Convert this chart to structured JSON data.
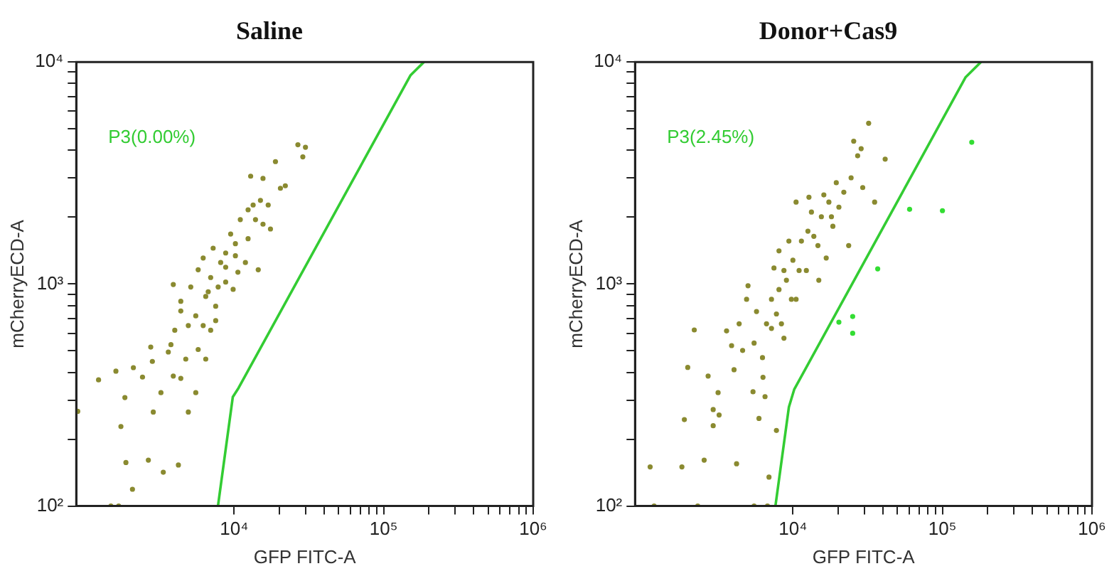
{
  "chart_data": [
    {
      "type": "scatter",
      "title": "Saline",
      "xlabel": "GFP FITC-A",
      "ylabel": "mCherryECD-A",
      "log": "xy",
      "grid": false,
      "legend": false,
      "marker": "circle",
      "xlim": [
        880,
        1000000
      ],
      "ylim": [
        100,
        10000
      ],
      "xticks": [
        {
          "value": 10000,
          "label": "10⁴"
        },
        {
          "value": 20000,
          "label": null
        },
        {
          "value": 30000,
          "label": null
        },
        {
          "value": 40000,
          "label": null
        },
        {
          "value": 50000,
          "label": null
        },
        {
          "value": 60000,
          "label": null
        },
        {
          "value": 70000,
          "label": null
        },
        {
          "value": 80000,
          "label": null
        },
        {
          "value": 90000,
          "label": null
        },
        {
          "value": 100000,
          "label": "10⁵"
        },
        {
          "value": 200000,
          "label": null
        },
        {
          "value": 300000,
          "label": null
        },
        {
          "value": 400000,
          "label": null
        },
        {
          "value": 500000,
          "label": null
        },
        {
          "value": 600000,
          "label": null
        },
        {
          "value": 700000,
          "label": null
        },
        {
          "value": 800000,
          "label": null
        },
        {
          "value": 900000,
          "label": null
        },
        {
          "value": 1000000,
          "label": "10⁶"
        }
      ],
      "yticks": [
        {
          "value": 100,
          "label": "10²"
        },
        {
          "value": 200,
          "label": null
        },
        {
          "value": 300,
          "label": null
        },
        {
          "value": 400,
          "label": null
        },
        {
          "value": 500,
          "label": null
        },
        {
          "value": 600,
          "label": null
        },
        {
          "value": 700,
          "label": null
        },
        {
          "value": 800,
          "label": null
        },
        {
          "value": 900,
          "label": null
        },
        {
          "value": 1000,
          "label": "10³"
        },
        {
          "value": 2000,
          "label": null
        },
        {
          "value": 3000,
          "label": null
        },
        {
          "value": 4000,
          "label": null
        },
        {
          "value": 5000,
          "label": null
        },
        {
          "value": 6000,
          "label": null
        },
        {
          "value": 7000,
          "label": null
        },
        {
          "value": 8000,
          "label": null
        },
        {
          "value": 9000,
          "label": null
        },
        {
          "value": 10000,
          "label": "10⁴"
        }
      ],
      "annotations": [
        "P3(0.00%)"
      ],
      "series": [
        {
          "color": "#8a8a30",
          "x": [
            1240,
            1620,
            1860,
            1750,
            2120,
            2440,
            2770,
            2840,
            3240,
            2880,
            2670,
            3360,
            4240,
            1890,
            2090,
            1500,
            1690,
            900,
            3920,
            3630,
            4010,
            4400,
            4750,
            4940,
            5540,
            5750,
            6210,
            6460,
            6970,
            7530,
            6970,
            8130,
            8780,
            9480,
            10200,
            10600,
            11900,
            12400,
            13900,
            15000,
            15600,
            13400,
            3920,
            4400,
            5130,
            5750,
            6210,
            7240,
            6710,
            8780,
            9850,
            7820,
            5540,
            4940,
            3780,
            4400,
            6460,
            7530,
            12900,
            15600,
            18900,
            20400,
            22000,
            26700,
            30000,
            28800,
            14500,
            11000,
            12400,
            17500,
            16900,
            10200,
            8780
          ],
          "values": [
            370,
            405,
            308,
            228,
            420,
            381,
            520,
            448,
            324,
            265,
            161,
            142,
            153,
            157,
            119,
            100,
            100,
            267,
            385,
            494,
            619,
            756,
            459,
            265,
            324,
            507,
            650,
            879,
            619,
            794,
            1070,
            1250,
            1380,
            1680,
            1520,
            1130,
            1250,
            1600,
            1950,
            2380,
            1860,
            2270,
            995,
            836,
            970,
            1160,
            1310,
            1450,
            923,
            1020,
            946,
            970,
            719,
            650,
            533,
            376,
            459,
            684,
            3060,
            2990,
            3560,
            2700,
            2770,
            4240,
            4130,
            3740,
            1160,
            1950,
            2160,
            1770,
            2270,
            1340,
            1190
          ]
        },
        {
          "type": "line",
          "marker": "none",
          "color": "#33cc33",
          "x": [
            7800,
            9800,
            10700,
            151000,
            186000
          ],
          "values": [
            100,
            310,
            340,
            8700,
            10000
          ]
        }
      ]
    },
    {
      "type": "scatter",
      "title": "Donor+Cas9",
      "xlabel": "GFP FITC-A",
      "ylabel": "mCherryECD-A",
      "log": "xy",
      "grid": false,
      "legend": false,
      "marker": "circle",
      "xlim": [
        880,
        1000000
      ],
      "ylim": [
        100,
        10000
      ],
      "xticks": [
        {
          "value": 10000,
          "label": "10⁴"
        },
        {
          "value": 20000,
          "label": null
        },
        {
          "value": 30000,
          "label": null
        },
        {
          "value": 40000,
          "label": null
        },
        {
          "value": 50000,
          "label": null
        },
        {
          "value": 60000,
          "label": null
        },
        {
          "value": 70000,
          "label": null
        },
        {
          "value": 80000,
          "label": null
        },
        {
          "value": 90000,
          "label": null
        },
        {
          "value": 100000,
          "label": "10⁵"
        },
        {
          "value": 200000,
          "label": null
        },
        {
          "value": 300000,
          "label": null
        },
        {
          "value": 400000,
          "label": null
        },
        {
          "value": 500000,
          "label": null
        },
        {
          "value": 600000,
          "label": null
        },
        {
          "value": 700000,
          "label": null
        },
        {
          "value": 800000,
          "label": null
        },
        {
          "value": 900000,
          "label": null
        },
        {
          "value": 1000000,
          "label": "10⁶"
        }
      ],
      "yticks": [
        {
          "value": 100,
          "label": "10²"
        },
        {
          "value": 200,
          "label": null
        },
        {
          "value": 300,
          "label": null
        },
        {
          "value": 400,
          "label": null
        },
        {
          "value": 500,
          "label": null
        },
        {
          "value": 600,
          "label": null
        },
        {
          "value": 700,
          "label": null
        },
        {
          "value": 800,
          "label": null
        },
        {
          "value": 900,
          "label": null
        },
        {
          "value": 1000,
          "label": "10³"
        },
        {
          "value": 2000,
          "label": null
        },
        {
          "value": 3000,
          "label": null
        },
        {
          "value": 4000,
          "label": null
        },
        {
          "value": 5000,
          "label": null
        },
        {
          "value": 6000,
          "label": null
        },
        {
          "value": 7000,
          "label": null
        },
        {
          "value": 8000,
          "label": null
        },
        {
          "value": 9000,
          "label": null
        },
        {
          "value": 10000,
          "label": "10⁴"
        }
      ],
      "annotations": [
        "P3(2.45%)"
      ],
      "series": [
        {
          "color": "#8a8a30",
          "x": [
            1110,
            1180,
            1810,
            1880,
            1980,
            2190,
            2310,
            2550,
            2710,
            2930,
            2930,
            3160,
            3210,
            3600,
            3890,
            4200,
            4040,
            4370,
            4610,
            5010,
            5410,
            5500,
            5710,
            5930,
            6260,
            6310,
            6510,
            6660,
            6920,
            7190,
            7470,
            7760,
            7760,
            8070,
            8380,
            8710,
            9050,
            9770,
            10000,
            10500,
            11000,
            10500,
            11400,
            12300,
            12600,
            13300,
            13800,
            14700,
            15500,
            16100,
            16700,
            17400,
            18500,
            19500,
            20300,
            21900,
            23600,
            24500,
            25500,
            27100,
            28600,
            32100,
            35200,
            41400,
            29300,
            5500,
            6760,
            9400,
            8710,
            14900,
            4900,
            8070,
            12800,
            18100,
            7190
          ],
          "values": [
            150,
            100,
            150,
            245,
            421,
            621,
            100,
            161,
            385,
            272,
            230,
            324,
            257,
            615,
            528,
            155,
            411,
            662,
            502,
            982,
            327,
            542,
            752,
            248,
            466,
            380,
            311,
            662,
            135,
            853,
            1180,
            219,
            733,
            944,
            662,
            570,
            1040,
            853,
            1280,
            853,
            1150,
            2340,
            1560,
            1150,
            1730,
            2110,
            1640,
            1490,
            2010,
            2520,
            1310,
            2340,
            1820,
            2860,
            2220,
            2590,
            1490,
            3010,
            4400,
            3780,
            4070,
            5300,
            2340,
            3650,
            2720,
            100,
            100,
            1560,
            1150,
            1040,
            853,
            1410,
            2460,
            2010,
            631
          ]
        },
        {
          "color": "#33dd33",
          "x": [
            20300,
            25100,
            25100,
            36900,
            60300,
            100000,
            157000
          ],
          "values": [
            673,
            714,
            600,
            1170,
            2170,
            2140,
            4350
          ]
        },
        {
          "type": "line",
          "marker": "none",
          "color": "#33cc33",
          "x": [
            7640,
            9400,
            10200,
            143000,
            181000
          ],
          "values": [
            100,
            279,
            335,
            8550,
            10000
          ]
        }
      ]
    }
  ]
}
